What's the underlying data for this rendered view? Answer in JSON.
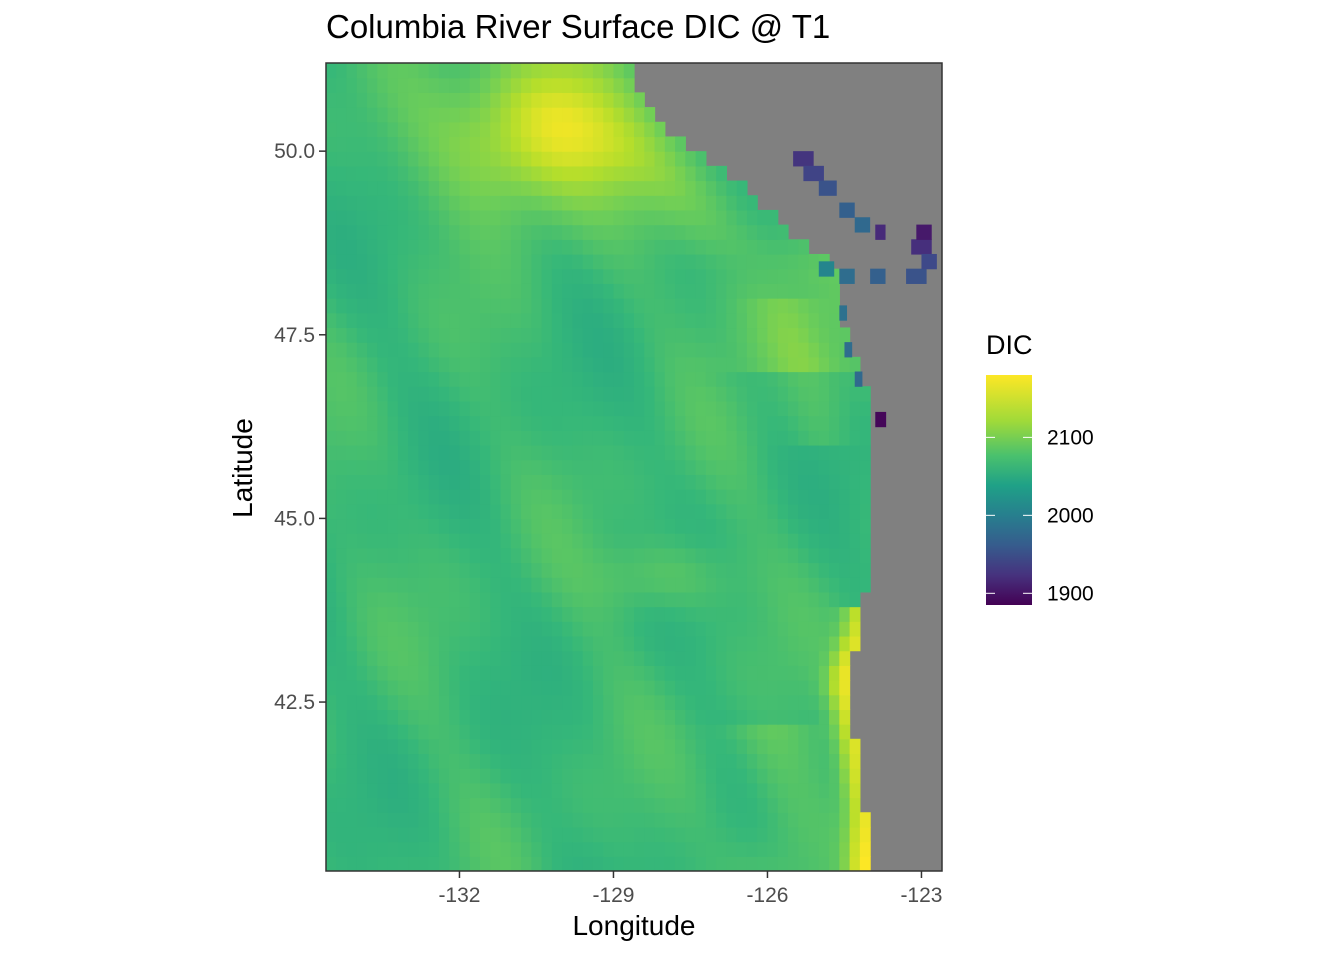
{
  "chart_data": {
    "type": "heatmap",
    "title": "Columbia River Surface DIC @ T1",
    "xlabel": "Longitude",
    "ylabel": "Latitude",
    "x_ticks": [
      -132,
      -129,
      -126,
      -123
    ],
    "x_tick_labels": [
      "-132",
      "-129",
      "-126",
      "-123"
    ],
    "y_ticks": [
      42.5,
      45.0,
      47.5,
      50.0
    ],
    "y_tick_labels": [
      "42.5",
      "45.0",
      "47.5",
      "50.0"
    ],
    "xlim": [
      -134.6,
      -122.6
    ],
    "ylim": [
      40.2,
      51.2
    ],
    "grid": false,
    "land_color": "#808080",
    "panel_border_color": "#333333",
    "colormap": "viridis",
    "color_range": [
      1885,
      2180
    ],
    "legend": {
      "title": "DIC",
      "position": "right",
      "breaks": [
        2100,
        2000,
        1900
      ],
      "labels": [
        "2100",
        "2000",
        "1900"
      ]
    },
    "field_summary": {
      "offshore_typical": 2085,
      "northern_high": 2165,
      "southern_coastal_high": 2175,
      "salish_sea_low": 1930,
      "columbia_plume_low": 1890
    }
  }
}
